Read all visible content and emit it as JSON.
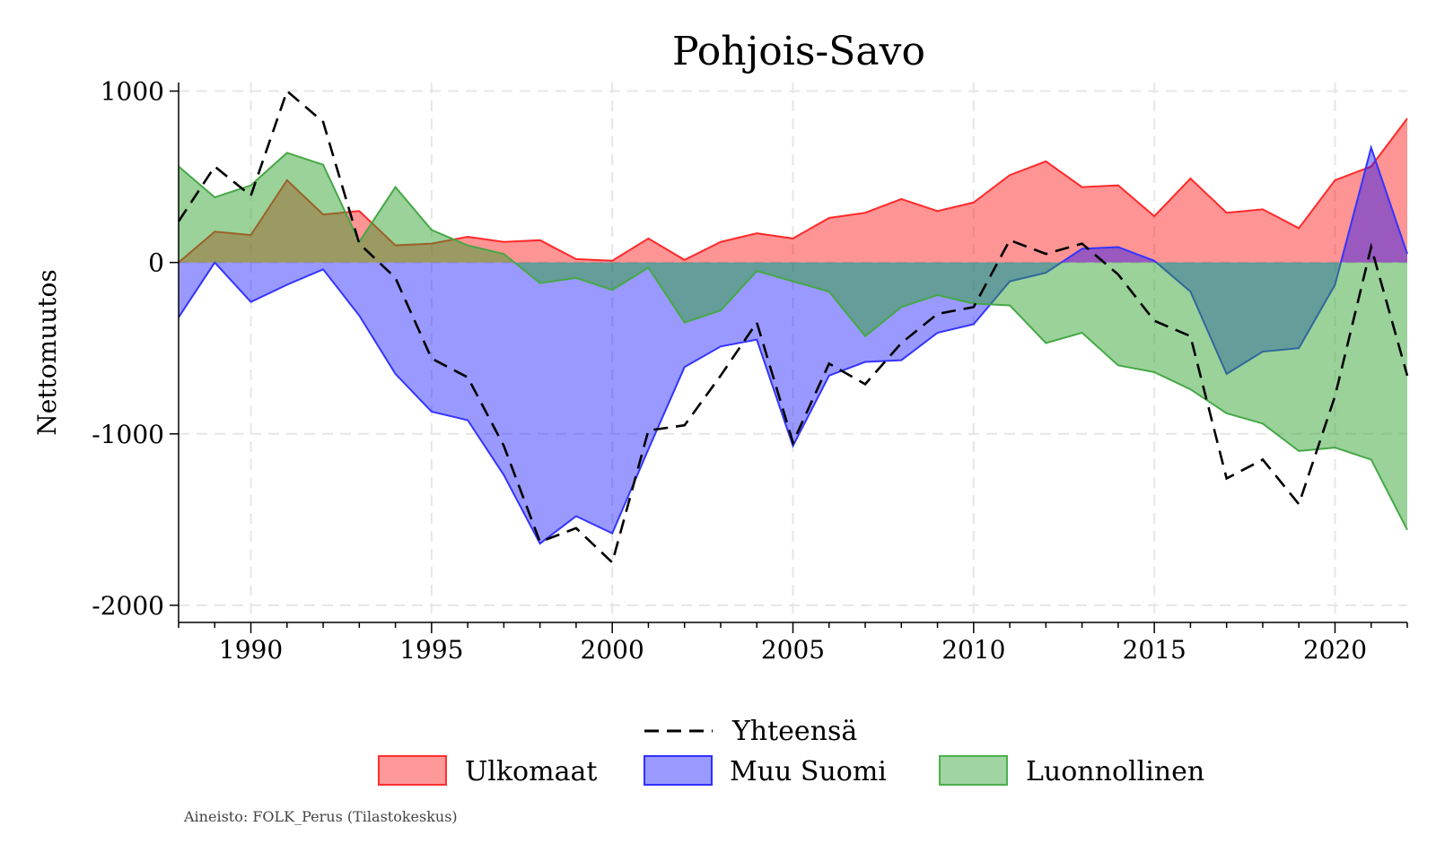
{
  "chart_data": {
    "type": "area",
    "title": "Pohjois-Savo",
    "xlabel": "",
    "ylabel": "Nettomuutos",
    "xlim": [
      1988,
      2022
    ],
    "ylim": [
      -2100,
      1050
    ],
    "x_ticks": [
      1990,
      1995,
      2000,
      2005,
      2010,
      2015,
      2020
    ],
    "y_ticks": [
      1000,
      0,
      -1000,
      -2000
    ],
    "x_tick_labels": [
      "1990",
      "1995",
      "2000",
      "2005",
      "2010",
      "2015",
      "2020"
    ],
    "y_tick_labels": [
      "1000",
      "0",
      "-1000",
      "-2000"
    ],
    "grid": true,
    "legend_placement": "bottom",
    "x": [
      1988,
      1989,
      1990,
      1991,
      1992,
      1993,
      1994,
      1995,
      1996,
      1997,
      1998,
      1999,
      2000,
      2001,
      2002,
      2003,
      2004,
      2005,
      2006,
      2007,
      2008,
      2009,
      2010,
      2011,
      2012,
      2013,
      2014,
      2015,
      2016,
      2017,
      2018,
      2019,
      2020,
      2021,
      2022
    ],
    "series": [
      {
        "name": "Ulkomaat",
        "kind": "area",
        "color": "#ff0000",
        "values": [
          0,
          180,
          160,
          480,
          280,
          300,
          100,
          110,
          150,
          120,
          130,
          20,
          10,
          140,
          15,
          120,
          170,
          140,
          260,
          290,
          370,
          300,
          350,
          510,
          590,
          440,
          450,
          270,
          490,
          290,
          310,
          200,
          480,
          560,
          840
        ]
      },
      {
        "name": "Muu Suomi",
        "kind": "area",
        "color": "#0000ff",
        "values": [
          -320,
          0,
          -230,
          -130,
          -40,
          -310,
          -650,
          -870,
          -920,
          -1240,
          -1640,
          -1480,
          -1580,
          -1090,
          -610,
          -490,
          -450,
          -1070,
          -660,
          -580,
          -570,
          -410,
          -360,
          -110,
          -60,
          80,
          90,
          10,
          -170,
          -650,
          -520,
          -500,
          -130,
          670,
          50
        ]
      },
      {
        "name": "Luonnollinen",
        "kind": "area",
        "color": "#2ca02c",
        "values": [
          560,
          380,
          450,
          640,
          570,
          120,
          440,
          190,
          100,
          50,
          -120,
          -90,
          -160,
          -30,
          -350,
          -280,
          -50,
          -110,
          -170,
          -430,
          -260,
          -190,
          -240,
          -250,
          -470,
          -410,
          -600,
          -640,
          -740,
          -880,
          -940,
          -1100,
          -1080,
          -1150,
          -1560
        ]
      },
      {
        "name": "Yhteensä",
        "kind": "line",
        "style": "dashed",
        "color": "#000000",
        "values": [
          240,
          560,
          390,
          1000,
          820,
          110,
          -90,
          -560,
          -670,
          -1070,
          -1630,
          -1550,
          -1750,
          -980,
          -950,
          -660,
          -350,
          -1050,
          -590,
          -710,
          -470,
          -300,
          -260,
          130,
          50,
          110,
          -70,
          -340,
          -430,
          -1260,
          -1150,
          -1410,
          -780,
          90,
          -660
        ]
      }
    ],
    "source": "Aineisto: FOLK_Perus (Tilastokeskus)"
  }
}
